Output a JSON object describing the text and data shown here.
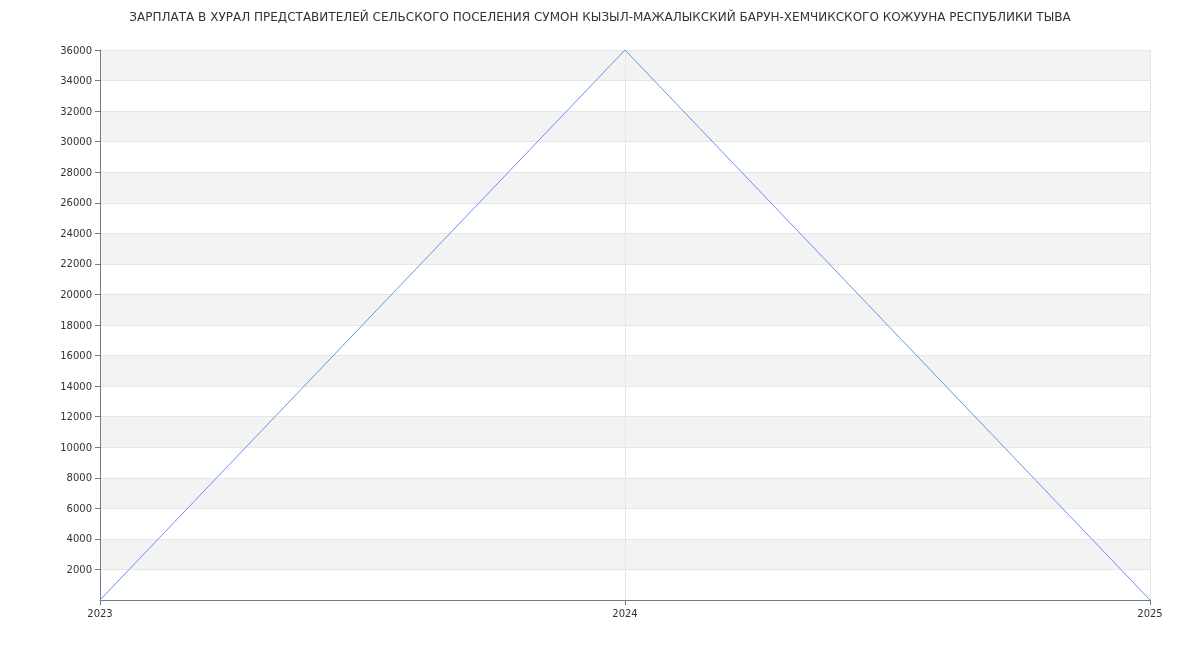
{
  "chart_data": {
    "type": "line",
    "title": "ЗАРПЛАТА В ХУРАЛ ПРЕДСТАВИТЕЛЕЙ СЕЛЬСКОГО ПОСЕЛЕНИЯ СУМОН КЫЗЫЛ-МАЖАЛЫКСКИЙ БАРУН-ХЕМЧИКСКОГО КОЖУУНА РЕСПУБЛИКИ ТЫВА",
    "categories": [
      "2023",
      "2024",
      "2025"
    ],
    "series": [
      {
        "color": "#6495ed",
        "values": [
          0,
          36000,
          0
        ]
      }
    ],
    "ylim": [
      0,
      36000
    ],
    "yticks": [
      2000,
      4000,
      6000,
      8000,
      10000,
      12000,
      14000,
      16000,
      18000,
      20000,
      22000,
      24000,
      26000,
      28000,
      30000,
      32000,
      34000,
      36000
    ],
    "grid": true,
    "marker": "none"
  }
}
